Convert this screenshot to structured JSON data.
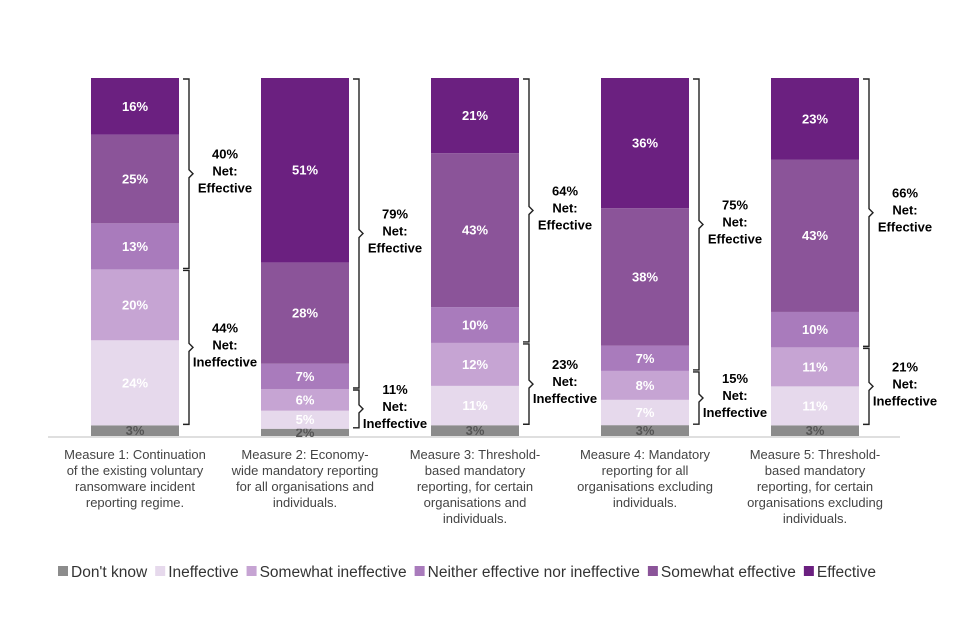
{
  "chart_data": {
    "type": "bar",
    "stacked": true,
    "percent": true,
    "ylim": [
      0,
      100
    ],
    "categories": [
      "Measure 1: Continuation of the existing voluntary ransomware incident reporting regime.",
      "Measure 2: Economy-wide mandatory reporting for all organisations and individuals.",
      "Measure 3: Threshold-based mandatory reporting, for certain organisations and individuals.",
      "Measure 4: Mandatory reporting for all organisations excluding individuals.",
      "Measure 5: Threshold-based mandatory reporting, for certain organisations excluding individuals."
    ],
    "category_lines": [
      [
        "Measure 1: Continuation",
        "of the existing voluntary",
        "ransomware incident",
        "reporting regime."
      ],
      [
        "Measure 2: Economy-",
        "wide mandatory reporting",
        "for all organisations and",
        "individuals."
      ],
      [
        "Measure 3: Threshold-",
        "based mandatory",
        "reporting, for certain",
        "organisations and",
        "individuals."
      ],
      [
        "Measure 4: Mandatory",
        "reporting for all",
        "organisations excluding",
        "individuals."
      ],
      [
        "Measure 5: Threshold-",
        "based mandatory",
        "reporting, for certain",
        "organisations excluding",
        "individuals."
      ]
    ],
    "series": [
      {
        "name": "Don't know",
        "color": "#8c8c8c",
        "values": [
          3,
          2,
          3,
          3,
          3
        ]
      },
      {
        "name": "Ineffective",
        "color": "#e6d9ec",
        "values": [
          24,
          5,
          11,
          7,
          11
        ]
      },
      {
        "name": "Somewhat ineffective",
        "color": "#c6a4d3",
        "values": [
          20,
          6,
          12,
          8,
          11
        ]
      },
      {
        "name": "Neither effective nor ineffective",
        "color": "#a97bbc",
        "values": [
          13,
          7,
          10,
          7,
          10
        ]
      },
      {
        "name": "Somewhat effective",
        "color": "#8b5499",
        "values": [
          25,
          28,
          43,
          38,
          43
        ]
      },
      {
        "name": "Effective",
        "color": "#6b2080",
        "values": [
          16,
          51,
          21,
          36,
          23
        ]
      }
    ],
    "net_effective": [
      {
        "pct": "40%",
        "line1": "Net:",
        "line2": "Effective"
      },
      {
        "pct": "79%",
        "line1": "Net:",
        "line2": "Effective"
      },
      {
        "pct": "64%",
        "line1": "Net:",
        "line2": "Effective"
      },
      {
        "pct": "75%",
        "line1": "Net:",
        "line2": "Effective"
      },
      {
        "pct": "66%",
        "line1": "Net:",
        "line2": "Effective"
      }
    ],
    "net_ineffective": [
      {
        "pct": "44%",
        "line1": "Net:",
        "line2": "Ineffective"
      },
      {
        "pct": "11%",
        "line1": "Net:",
        "line2": "Ineffective"
      },
      {
        "pct": "23%",
        "line1": "Net:",
        "line2": "Ineffective"
      },
      {
        "pct": "15%",
        "line1": "Net:",
        "line2": "Ineffective"
      },
      {
        "pct": "21%",
        "line1": "Net:",
        "line2": "Ineffective"
      }
    ],
    "legend_position": "bottom"
  }
}
